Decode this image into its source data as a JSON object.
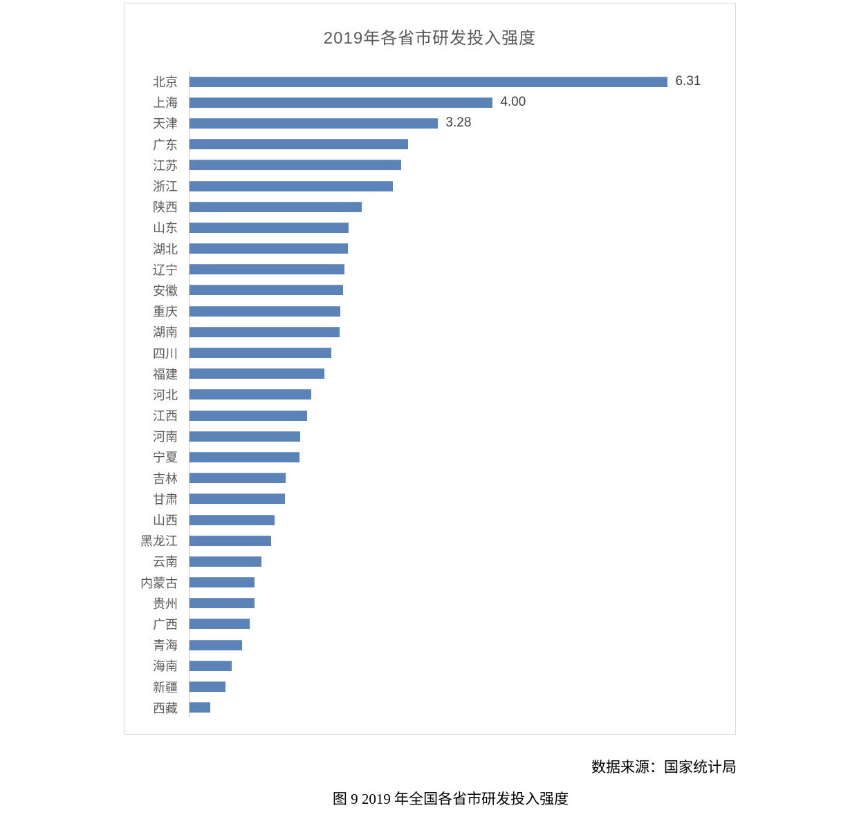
{
  "page": {
    "source_note": "数据来源：国家统计局",
    "caption": "图 9 2019 年全国各省市研发投入强度"
  },
  "chart_data": {
    "type": "bar",
    "orientation": "horizontal",
    "title": "2019年各省市研发投入强度",
    "categories": [
      "北京",
      "上海",
      "天津",
      "广东",
      "江苏",
      "浙江",
      "陕西",
      "山东",
      "湖北",
      "辽宁",
      "安徽",
      "重庆",
      "湖南",
      "四川",
      "福建",
      "河北",
      "江西",
      "河南",
      "宁夏",
      "吉林",
      "甘肃",
      "山西",
      "黑龙江",
      "云南",
      "内蒙古",
      "贵州",
      "广西",
      "青海",
      "海南",
      "新疆",
      "西藏"
    ],
    "values": [
      6.31,
      4.0,
      3.28,
      2.88,
      2.79,
      2.68,
      2.27,
      2.1,
      2.09,
      2.04,
      2.03,
      1.99,
      1.98,
      1.87,
      1.78,
      1.61,
      1.55,
      1.46,
      1.45,
      1.27,
      1.26,
      1.12,
      1.08,
      0.95,
      0.86,
      0.86,
      0.79,
      0.69,
      0.56,
      0.47,
      0.27
    ],
    "data_labels": [
      "6.31",
      "4.00",
      "3.28"
    ],
    "xlabel": "",
    "ylabel": "",
    "xlim": [
      0,
      7.2
    ],
    "grid": false,
    "legend": false,
    "bar_color": "#5b83b8",
    "axis_line_color": "#c8c8c8",
    "title_color": "#595959",
    "category_label_color": "#595959",
    "value_label_color": "#404040"
  }
}
